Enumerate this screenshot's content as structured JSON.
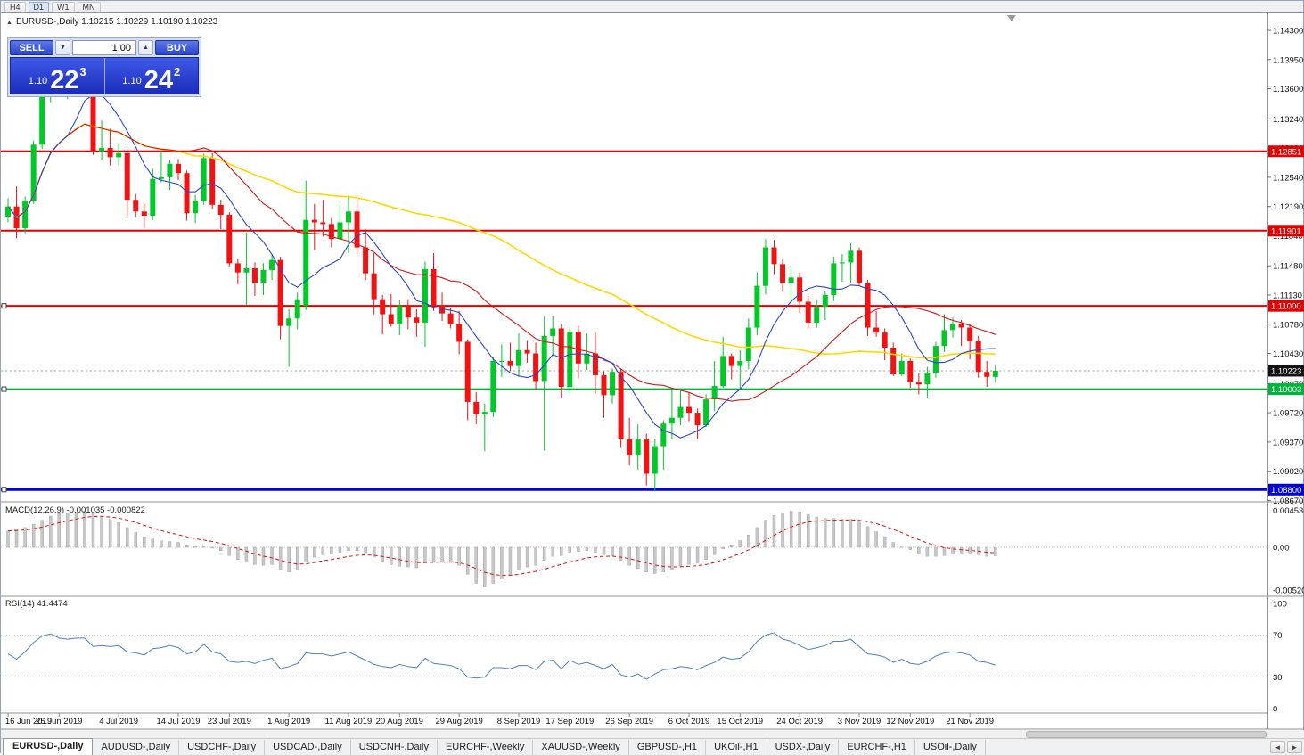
{
  "window": {
    "timeframes": [
      "H4",
      "D1",
      "W1",
      "MN"
    ],
    "active_timeframe": "D1"
  },
  "icons": {
    "header_toggle": "▲",
    "caret_down": "▼",
    "caret_up": "▲",
    "tab_left": "◄",
    "tab_right": "►"
  },
  "header": {
    "title": "EURUSD-,Daily  1.10215 1.10229 1.10190 1.10223"
  },
  "trade_panel": {
    "sell_label": "SELL",
    "buy_label": "BUY",
    "volume": "1.00",
    "sell_price": {
      "prefix": "1.10",
      "big": "22",
      "sup": "3"
    },
    "buy_price": {
      "prefix": "1.10",
      "big": "24",
      "sup": "2"
    }
  },
  "price_axis": {
    "labels": [
      "1.14300",
      "1.13950",
      "1.13600",
      "1.13240",
      "1.12890",
      "1.12540",
      "1.12190",
      "1.11840",
      "1.11480",
      "1.11130",
      "1.10780",
      "1.10430",
      "1.10070",
      "1.09720",
      "1.09370",
      "1.09020",
      "1.08670"
    ]
  },
  "levels": [
    {
      "price": 1.12851,
      "label": "1.12851",
      "color": "#e10000",
      "width": 2,
      "anchor": false
    },
    {
      "price": 1.11901,
      "label": "1.11901",
      "color": "#e10000",
      "width": 2,
      "anchor": false
    },
    {
      "price": 1.11,
      "label": "1.11000",
      "color": "#e10000",
      "width": 2,
      "anchor": true
    },
    {
      "price": 1.10003,
      "label": "1.10003",
      "color": "#00b33c",
      "width": 2,
      "anchor": true
    },
    {
      "price": 1.088,
      "label": "1.08800",
      "color": "#0000d8",
      "width": 3,
      "anchor": true
    }
  ],
  "current_price": {
    "value": 1.10223,
    "label": "1.10223"
  },
  "macd_panel": {
    "title": "MACD(12,26,9) -0.001035 -0.000822",
    "axis_labels": [
      {
        "v": 0.004536,
        "label": "0.004536"
      },
      {
        "v": 0,
        "label": "0.00"
      },
      {
        "v": -0.005205,
        "label": "-0.005205"
      }
    ]
  },
  "rsi_panel": {
    "title": "RSI(14) 41.4474",
    "axis_labels": [
      {
        "v": 100,
        "label": "100"
      },
      {
        "v": 70,
        "label": "70"
      },
      {
        "v": 30,
        "label": "30"
      },
      {
        "v": 0,
        "label": "0"
      }
    ],
    "levels": [
      70,
      30
    ]
  },
  "date_axis": {
    "labels": [
      "16 Jun 2019",
      "25 Jun 2019",
      "4 Jul 2019",
      "14 Jul 2019",
      "23 Jul 2019",
      "1 Aug 2019",
      "11 Aug 2019",
      "20 Aug 2019",
      "29 Aug 2019",
      "8 Sep 2019",
      "17 Sep 2019",
      "26 Sep 2019",
      "6 Oct 2019",
      "15 Oct 2019",
      "24 Oct 2019",
      "3 Nov 2019",
      "12 Nov 2019",
      "21 Nov 2019"
    ],
    "tick_indices": [
      0,
      6,
      13,
      20,
      26,
      33,
      40,
      46,
      53,
      60,
      66,
      73,
      80,
      86,
      93,
      100,
      106,
      113
    ]
  },
  "tabs": {
    "items": [
      "EURUSD-,Daily",
      "AUDUSD-,Daily",
      "USDCHF-,Daily",
      "USDCAD-,Daily",
      "USDCNH-,Daily",
      "EURCHF-,Weekly",
      "XAUUSD-,Weekly",
      "GBPUSD-,H1",
      "UKOil-,H1",
      "USDX-,Daily",
      "EURCHF-,H1",
      "USOil-,Daily"
    ],
    "active_index": 0
  },
  "chart_data": {
    "type": "candlestick",
    "symbol": "EURUSD",
    "timeframe": "Daily",
    "price_range": [
      1.0867,
      1.143
    ],
    "colors": {
      "bull": "#00c828",
      "bear": "#f21212",
      "ma_fast": "#2a46c8",
      "ma_mid": "#d01818",
      "ma_slow": "#ffd800",
      "macd_hist": "#c8c8c8",
      "macd_signal": "#dd1111",
      "rsi_line": "#4f81bd"
    },
    "candles": [
      [
        1.1207,
        1.1229,
        1.12,
        1.1219
      ],
      [
        1.1219,
        1.1243,
        1.1181,
        1.1193
      ],
      [
        1.1193,
        1.1231,
        1.1187,
        1.1226
      ],
      [
        1.1226,
        1.1298,
        1.1222,
        1.1293
      ],
      [
        1.1293,
        1.1374,
        1.1288,
        1.1369
      ],
      [
        1.1369,
        1.1405,
        1.1344,
        1.1399
      ],
      [
        1.1399,
        1.1412,
        1.1361,
        1.1366
      ],
      [
        1.1366,
        1.139,
        1.1348,
        1.1366
      ],
      [
        1.1366,
        1.1391,
        1.1357,
        1.1373
      ],
      [
        1.1373,
        1.1394,
        1.1362,
        1.1373
      ],
      [
        1.1364,
        1.1368,
        1.1281,
        1.1285
      ],
      [
        1.1285,
        1.1322,
        1.1275,
        1.1289
      ],
      [
        1.1289,
        1.1312,
        1.1268,
        1.1278
      ],
      [
        1.1278,
        1.1295,
        1.1268,
        1.1283
      ],
      [
        1.1283,
        1.1288,
        1.1207,
        1.1227
      ],
      [
        1.1227,
        1.1234,
        1.1207,
        1.1213
      ],
      [
        1.1213,
        1.1222,
        1.1193,
        1.1208
      ],
      [
        1.1208,
        1.1264,
        1.1203,
        1.1252
      ],
      [
        1.1252,
        1.1285,
        1.1248,
        1.1254
      ],
      [
        1.1254,
        1.1275,
        1.1239,
        1.127
      ],
      [
        1.127,
        1.1276,
        1.1251,
        1.1259
      ],
      [
        1.1259,
        1.1262,
        1.1202,
        1.1211
      ],
      [
        1.1211,
        1.1233,
        1.1199,
        1.1226
      ],
      [
        1.1226,
        1.1282,
        1.1221,
        1.1277
      ],
      [
        1.1277,
        1.1283,
        1.1216,
        1.1221
      ],
      [
        1.1221,
        1.1227,
        1.1192,
        1.1209
      ],
      [
        1.1209,
        1.1212,
        1.1147,
        1.1151
      ],
      [
        1.1151,
        1.1156,
        1.1126,
        1.114
      ],
      [
        1.114,
        1.1188,
        1.1101,
        1.1145
      ],
      [
        1.1145,
        1.1152,
        1.1112,
        1.1128
      ],
      [
        1.1128,
        1.1151,
        1.1113,
        1.1143
      ],
      [
        1.1143,
        1.1162,
        1.1131,
        1.1155
      ],
      [
        1.1155,
        1.1159,
        1.106,
        1.1076
      ],
      [
        1.1076,
        1.1096,
        1.1027,
        1.1085
      ],
      [
        1.1085,
        1.1116,
        1.1072,
        1.1108
      ],
      [
        1.11,
        1.125,
        1.1095,
        1.1203
      ],
      [
        1.1203,
        1.1222,
        1.1167,
        1.12
      ],
      [
        1.12,
        1.1227,
        1.1183,
        1.1198
      ],
      [
        1.1198,
        1.1205,
        1.117,
        1.118
      ],
      [
        1.118,
        1.1223,
        1.1177,
        1.12
      ],
      [
        1.12,
        1.1232,
        1.1163,
        1.1213
      ],
      [
        1.1213,
        1.123,
        1.1162,
        1.117
      ],
      [
        1.117,
        1.1192,
        1.1131,
        1.1139
      ],
      [
        1.1139,
        1.1163,
        1.109,
        1.1108
      ],
      [
        1.1108,
        1.1113,
        1.1066,
        1.109
      ],
      [
        1.109,
        1.1114,
        1.1075,
        1.1078
      ],
      [
        1.1078,
        1.1107,
        1.1065,
        1.11
      ],
      [
        1.11,
        1.1108,
        1.1072,
        1.1086
      ],
      [
        1.1086,
        1.1096,
        1.1063,
        1.108
      ],
      [
        1.108,
        1.1153,
        1.1051,
        1.1144
      ],
      [
        1.1144,
        1.1163,
        1.1094,
        1.1101
      ],
      [
        1.1101,
        1.1116,
        1.1082,
        1.1091
      ],
      [
        1.1091,
        1.1098,
        1.1073,
        1.1078
      ],
      [
        1.1078,
        1.1094,
        1.1042,
        1.1057
      ],
      [
        1.1057,
        1.106,
        1.0963,
        1.0985
      ],
      [
        1.0985,
        1.0997,
        1.0958,
        1.097
      ],
      [
        1.097,
        1.0983,
        1.0926,
        1.0973
      ],
      [
        1.0973,
        1.1039,
        1.0967,
        1.1034
      ],
      [
        1.1034,
        1.1054,
        1.1015,
        1.1034
      ],
      [
        1.1034,
        1.1056,
        1.1022,
        1.1028
      ],
      [
        1.1028,
        1.1067,
        1.1015,
        1.1047
      ],
      [
        1.1047,
        1.1059,
        1.1032,
        1.1043
      ],
      [
        1.1043,
        1.1056,
        1.0999,
        1.101
      ],
      [
        1.101,
        1.1087,
        1.0927,
        1.1064
      ],
      [
        1.1064,
        1.1088,
        1.104,
        1.1073
      ],
      [
        1.1073,
        1.1078,
        1.099,
        1.1003
      ],
      [
        1.1003,
        1.1075,
        1.0996,
        1.1069
      ],
      [
        1.1069,
        1.1076,
        1.1013,
        1.1031
      ],
      [
        1.1031,
        1.1067,
        1.1023,
        1.1043
      ],
      [
        1.1043,
        1.1068,
        1.0995,
        1.1017
      ],
      [
        1.1017,
        1.1022,
        1.0966,
        1.0993
      ],
      [
        1.0993,
        1.1025,
        1.0983,
        1.1021
      ],
      [
        1.1021,
        1.1024,
        1.093,
        1.0941
      ],
      [
        1.0941,
        1.0966,
        1.0909,
        1.0921
      ],
      [
        1.0921,
        1.0958,
        1.0904,
        1.094
      ],
      [
        1.094,
        1.0947,
        1.0885,
        1.0899
      ],
      [
        1.0899,
        1.0941,
        1.0879,
        1.0932
      ],
      [
        1.0932,
        1.0963,
        1.0904,
        1.0959
      ],
      [
        1.0959,
        1.0999,
        1.0941,
        1.0966
      ],
      [
        1.0966,
        1.0999,
        1.0957,
        1.0979
      ],
      [
        1.0979,
        1.0996,
        1.0962,
        1.0972
      ],
      [
        1.0972,
        1.0977,
        1.0941,
        1.0957
      ],
      [
        1.0957,
        1.0994,
        1.0955,
        1.0988
      ],
      [
        1.0988,
        1.1034,
        1.0974,
        1.1004
      ],
      [
        1.1004,
        1.1063,
        1.1002,
        1.104
      ],
      [
        1.104,
        1.1043,
        1.1012,
        1.1028
      ],
      [
        1.1028,
        1.1047,
        1.1001,
        1.1034
      ],
      [
        1.1034,
        1.1085,
        1.1024,
        1.1074
      ],
      [
        1.1074,
        1.114,
        1.1065,
        1.1124
      ],
      [
        1.1124,
        1.118,
        1.1114,
        1.117
      ],
      [
        1.117,
        1.1179,
        1.1138,
        1.115
      ],
      [
        1.115,
        1.1156,
        1.1117,
        1.1128
      ],
      [
        1.1128,
        1.1146,
        1.1106,
        1.1134
      ],
      [
        1.1134,
        1.114,
        1.1092,
        1.1105
      ],
      [
        1.1105,
        1.1112,
        1.1073,
        1.108
      ],
      [
        1.108,
        1.1108,
        1.1074,
        1.1099
      ],
      [
        1.1099,
        1.1118,
        1.1083,
        1.1113
      ],
      [
        1.1113,
        1.1159,
        1.1106,
        1.1151
      ],
      [
        1.1151,
        1.1162,
        1.1129,
        1.1152
      ],
      [
        1.1152,
        1.1175,
        1.1128,
        1.1166
      ],
      [
        1.1166,
        1.117,
        1.1124,
        1.1127
      ],
      [
        1.1127,
        1.1131,
        1.1064,
        1.1074
      ],
      [
        1.1074,
        1.1094,
        1.1063,
        1.1068
      ],
      [
        1.1068,
        1.1073,
        1.1035,
        1.105
      ],
      [
        1.105,
        1.1056,
        1.1016,
        1.1018
      ],
      [
        1.1018,
        1.1043,
        1.1016,
        1.1034
      ],
      [
        1.1034,
        1.1037,
        1.1002,
        1.1009
      ],
      [
        1.1009,
        1.1019,
        1.0994,
        1.1006
      ],
      [
        1.1006,
        1.1027,
        1.0989,
        1.102
      ],
      [
        1.102,
        1.1057,
        1.1014,
        1.1052
      ],
      [
        1.1052,
        1.109,
        1.1045,
        1.1071
      ],
      [
        1.1071,
        1.1086,
        1.1062,
        1.1078
      ],
      [
        1.1078,
        1.1083,
        1.1052,
        1.1074
      ],
      [
        1.1074,
        1.1079,
        1.1036,
        1.1058
      ],
      [
        1.1058,
        1.1064,
        1.1014,
        1.1021
      ],
      [
        1.1021,
        1.1034,
        1.1003,
        1.1015
      ],
      [
        1.1015,
        1.1029,
        1.1008,
        1.10223
      ]
    ],
    "macd_main": [
      0.002,
      0.0022,
      0.0024,
      0.0028,
      0.0033,
      0.0038,
      0.0041,
      0.0042,
      0.0043,
      0.0044,
      0.0042,
      0.0038,
      0.0034,
      0.003,
      0.0024,
      0.0018,
      0.0013,
      0.001,
      0.0008,
      0.0007,
      0.0006,
      0.0003,
      0.0001,
      0.0002,
      0.0,
      -0.0004,
      -0.001,
      -0.0015,
      -0.0018,
      -0.0021,
      -0.0022,
      -0.0021,
      -0.0028,
      -0.003,
      -0.0028,
      -0.0018,
      -0.0012,
      -0.0009,
      -0.0008,
      -0.0006,
      -0.0004,
      -0.0004,
      -0.0007,
      -0.0012,
      -0.0017,
      -0.0021,
      -0.0023,
      -0.0024,
      -0.0025,
      -0.0019,
      -0.0017,
      -0.0017,
      -0.0018,
      -0.0022,
      -0.0033,
      -0.0044,
      -0.0048,
      -0.0044,
      -0.0039,
      -0.0034,
      -0.0028,
      -0.0024,
      -0.0022,
      -0.0016,
      -0.0011,
      -0.001,
      -0.0006,
      -0.0005,
      -0.0004,
      -0.0006,
      -0.0009,
      -0.001,
      -0.0016,
      -0.0022,
      -0.0026,
      -0.003,
      -0.0032,
      -0.003,
      -0.0027,
      -0.0023,
      -0.0021,
      -0.0019,
      -0.0015,
      -0.0009,
      -0.0002,
      0.0003,
      0.0008,
      0.0015,
      0.0024,
      0.0033,
      0.0039,
      0.0042,
      0.0044,
      0.0043,
      0.004,
      0.0037,
      0.0035,
      0.0035,
      0.0034,
      0.0034,
      0.0031,
      0.0025,
      0.0019,
      0.0013,
      0.0006,
      0.0002,
      -0.0003,
      -0.0008,
      -0.0011,
      -0.0011,
      -0.001,
      -0.0008,
      -0.0007,
      -0.0007,
      -0.0009,
      -0.0011,
      -0.001035
    ],
    "rsi": [
      52,
      47,
      54,
      63,
      69,
      71,
      67,
      66,
      67,
      67,
      59,
      60,
      59,
      60,
      54,
      53,
      51,
      57,
      58,
      60,
      58,
      52,
      54,
      61,
      54,
      52,
      45,
      44,
      45,
      43,
      46,
      48,
      38,
      40,
      43,
      53,
      52,
      52,
      50,
      52,
      54,
      50,
      46,
      42,
      40,
      39,
      42,
      40,
      39,
      48,
      43,
      42,
      41,
      38,
      30,
      29,
      30,
      39,
      39,
      38,
      41,
      41,
      37,
      45,
      46,
      38,
      46,
      42,
      44,
      41,
      38,
      42,
      32,
      30,
      33,
      28,
      33,
      37,
      38,
      40,
      39,
      37,
      41,
      44,
      49,
      47,
      48,
      54,
      64,
      70,
      72,
      66,
      64,
      60,
      56,
      58,
      60,
      64,
      64,
      66,
      59,
      52,
      51,
      49,
      44,
      47,
      43,
      42,
      45,
      50,
      53,
      54,
      53,
      51,
      45,
      44,
      41.4474
    ]
  }
}
